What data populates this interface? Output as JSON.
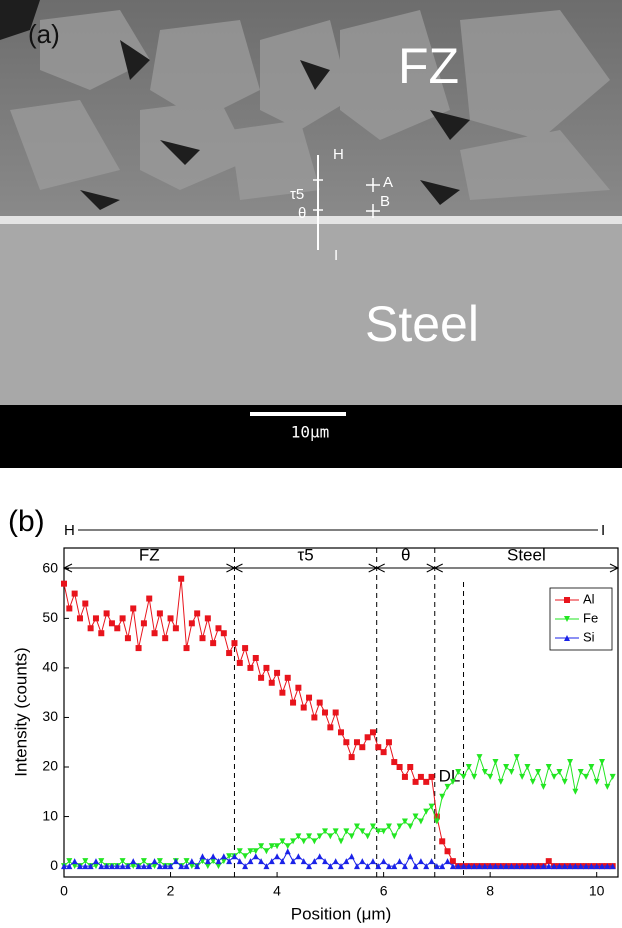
{
  "image": {
    "panel": "(a)",
    "zone_top": "FZ",
    "zone_bottom": "Steel",
    "line_start": "H",
    "line_end": "I",
    "phase1": "τ5",
    "phase2": "θ",
    "point_a": "A",
    "point_b": "B",
    "scale_bar": "10μm"
  },
  "chart_data": {
    "type": "line",
    "panel": "(b)",
    "line_start": "H",
    "line_end": "I",
    "xlabel": "Position (μm)",
    "ylabel": "Intensity (counts)",
    "xlim": [
      0,
      10.4
    ],
    "ylim": [
      -2.2,
      64.2
    ],
    "xticks": [
      0,
      2,
      4,
      6,
      8,
      10
    ],
    "yticks": [
      0,
      10,
      20,
      30,
      40,
      50,
      60
    ],
    "regions": [
      "FZ",
      "τ5",
      "θ",
      "Steel"
    ],
    "boundaries": [
      3.2,
      5.87,
      6.96
    ],
    "dl_label": "DL",
    "dl_position": 7.5,
    "legend": "upper right",
    "x": [
      0,
      0.1,
      0.2,
      0.3,
      0.4,
      0.5,
      0.6,
      0.7,
      0.8,
      0.9,
      1,
      1.1,
      1.2,
      1.3,
      1.4,
      1.5,
      1.6,
      1.7,
      1.8,
      1.9,
      2,
      2.1,
      2.2,
      2.3,
      2.4,
      2.5,
      2.6,
      2.7,
      2.8,
      2.9,
      3,
      3.1,
      3.2,
      3.3,
      3.4,
      3.5,
      3.6,
      3.7,
      3.8,
      3.9,
      4,
      4.1,
      4.2,
      4.3,
      4.4,
      4.5,
      4.6,
      4.7,
      4.8,
      4.9,
      5,
      5.1,
      5.2,
      5.3,
      5.4,
      5.5,
      5.6,
      5.7,
      5.8,
      5.9,
      6,
      6.1,
      6.2,
      6.3,
      6.4,
      6.5,
      6.6,
      6.7,
      6.8,
      6.9,
      7,
      7.1,
      7.2,
      7.3,
      7.4,
      7.5,
      7.6,
      7.7,
      7.8,
      7.9,
      8,
      8.1,
      8.2,
      8.3,
      8.4,
      8.5,
      8.6,
      8.7,
      8.8,
      8.9,
      9,
      9.1,
      9.2,
      9.3,
      9.4,
      9.5,
      9.6,
      9.7,
      9.8,
      9.9,
      10,
      10.1,
      10.2,
      10.3
    ],
    "series": [
      {
        "name": "Al",
        "color": "#e8141c",
        "marker": "square",
        "values": [
          57,
          52,
          55,
          50,
          53,
          48,
          50,
          47,
          51,
          49,
          48,
          50,
          46,
          52,
          44,
          49,
          54,
          47,
          51,
          46,
          50,
          48,
          58,
          44,
          49,
          51,
          46,
          50,
          45,
          48,
          47,
          43,
          45,
          41,
          44,
          40,
          42,
          38,
          40,
          37,
          39,
          35,
          38,
          33,
          36,
          32,
          34,
          30,
          33,
          31,
          28,
          31,
          27,
          25,
          22,
          25,
          24,
          26,
          27,
          24,
          23,
          25,
          21,
          20,
          18,
          20,
          17,
          18,
          17,
          18,
          10,
          5,
          3,
          1,
          0,
          0,
          0,
          0,
          0,
          0,
          0,
          0,
          0,
          0,
          0,
          0,
          0,
          0,
          0,
          0,
          0,
          1,
          0,
          0,
          0,
          0,
          0,
          0,
          0,
          0,
          0,
          0,
          0,
          0
        ]
      },
      {
        "name": "Fe",
        "color": "#22e622",
        "marker": "triangle-down",
        "values": [
          0,
          1,
          0,
          0,
          1,
          0,
          0,
          1,
          0,
          0,
          0,
          1,
          0,
          0,
          0,
          1,
          0,
          0,
          1,
          0,
          0,
          1,
          0,
          1,
          0,
          0,
          1,
          0,
          1,
          0,
          1,
          2,
          2,
          3,
          2,
          3,
          3,
          4,
          3,
          4,
          4,
          5,
          4,
          5,
          6,
          5,
          6,
          5,
          6,
          7,
          6,
          7,
          5,
          7,
          6,
          8,
          7,
          6,
          8,
          7,
          7,
          8,
          6,
          8,
          9,
          8,
          10,
          9,
          11,
          12,
          9,
          14,
          16,
          17,
          19,
          18,
          20,
          18,
          22,
          19,
          18,
          21,
          17,
          20,
          19,
          22,
          18,
          20,
          17,
          19,
          16,
          20,
          18,
          19,
          17,
          21,
          15,
          19,
          18,
          20,
          17,
          21,
          16,
          18
        ]
      },
      {
        "name": "Si",
        "color": "#1a22e8",
        "marker": "triangle-up",
        "values": [
          0,
          0,
          1,
          0,
          0,
          0,
          1,
          0,
          0,
          0,
          0,
          0,
          0,
          1,
          0,
          0,
          0,
          1,
          0,
          0,
          0,
          1,
          0,
          0,
          1,
          0,
          2,
          1,
          2,
          1,
          2,
          1,
          2,
          1,
          0,
          1,
          2,
          1,
          0,
          1,
          2,
          1,
          3,
          1,
          2,
          1,
          0,
          1,
          2,
          1,
          0,
          1,
          0,
          1,
          2,
          0,
          1,
          0,
          1,
          0,
          1,
          0,
          0,
          1,
          0,
          2,
          0,
          1,
          0,
          1,
          0,
          0,
          1,
          0,
          0,
          0,
          0,
          0,
          0,
          0,
          0,
          0,
          0,
          0,
          0,
          0,
          0,
          0,
          0,
          0,
          0,
          0,
          0,
          0,
          0,
          0,
          0,
          0,
          0,
          0,
          0,
          0,
          0,
          0
        ]
      }
    ]
  }
}
